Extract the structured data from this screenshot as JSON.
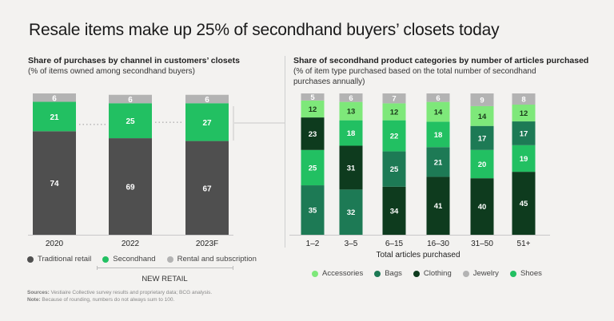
{
  "title": "Resale items make up 25% of secondhand buyers’ closets today",
  "left_panel": {
    "heading": "Share of purchases by channel in customers’ closets",
    "subheading": "(% of items owned among secondhand buyers)",
    "new_retail_label": "NEW RETAIL",
    "legend": [
      {
        "label": "Traditional retail",
        "color": "#4f4f4f"
      },
      {
        "label": "Secondhand",
        "color": "#22c062"
      },
      {
        "label": "Rental and subscription",
        "color": "#b3b3b3"
      }
    ]
  },
  "right_panel": {
    "heading": "Share of secondhand product categories by number of articles purchased",
    "subheading_line1": "(% of item type purchased based on the total number of  secondhand",
    "subheading_line2": "purchases annually)",
    "xlabel": "Total articles purchased",
    "legend": [
      {
        "label": "Accessories",
        "color": "#7ee87a"
      },
      {
        "label": "Bags",
        "color": "#1d7a55"
      },
      {
        "label": "Clothing",
        "color": "#0e3b1e"
      },
      {
        "label": "Jewelry",
        "color": "#b3b3b3"
      },
      {
        "label": "Shoes",
        "color": "#22c062"
      }
    ]
  },
  "footnotes": {
    "sources_label": "Sources:",
    "sources_text": "Vestiaire Collective survey results and proprietary data; BCG analysis.",
    "note_label": "Note:",
    "note_text": "Because of rounding, numbers do not always sum to 100."
  },
  "chart_data": [
    {
      "type": "bar",
      "stacked": true,
      "title": "Share of purchases by channel in customers’ closets",
      "categories": [
        "2020",
        "2022",
        "2023F"
      ],
      "series": [
        {
          "name": "Traditional retail",
          "color": "#4f4f4f",
          "values": [
            74,
            69,
            67
          ]
        },
        {
          "name": "Secondhand",
          "color": "#22c062",
          "values": [
            21,
            25,
            27
          ]
        },
        {
          "name": "Rental and subscription",
          "color": "#b3b3b3",
          "values": [
            6,
            6,
            6
          ]
        }
      ],
      "ylim": [
        0,
        101
      ],
      "legend": "bottom"
    },
    {
      "type": "bar",
      "stacked": true,
      "title": "Share of secondhand product categories by number of articles purchased",
      "xlabel": "Total articles purchased",
      "categories": [
        "1–2",
        "3–5",
        "6–15",
        "16–30",
        "31–50",
        "51+"
      ],
      "stacks": [
        [
          {
            "name": "Bags",
            "value": 35
          },
          {
            "name": "Shoes",
            "value": 25
          },
          {
            "name": "Clothing",
            "value": 23
          },
          {
            "name": "Accessories",
            "value": 12
          },
          {
            "name": "Jewelry",
            "value": 5
          }
        ],
        [
          {
            "name": "Bags",
            "value": 32
          },
          {
            "name": "Clothing",
            "value": 31
          },
          {
            "name": "Shoes",
            "value": 18
          },
          {
            "name": "Accessories",
            "value": 13
          },
          {
            "name": "Jewelry",
            "value": 6
          }
        ],
        [
          {
            "name": "Clothing",
            "value": 34
          },
          {
            "name": "Bags",
            "value": 25
          },
          {
            "name": "Shoes",
            "value": 22
          },
          {
            "name": "Accessories",
            "value": 12
          },
          {
            "name": "Jewelry",
            "value": 7
          }
        ],
        [
          {
            "name": "Clothing",
            "value": 41
          },
          {
            "name": "Bags",
            "value": 21
          },
          {
            "name": "Shoes",
            "value": 18
          },
          {
            "name": "Accessories",
            "value": 14
          },
          {
            "name": "Jewelry",
            "value": 6
          }
        ],
        [
          {
            "name": "Clothing",
            "value": 40
          },
          {
            "name": "Shoes",
            "value": 20
          },
          {
            "name": "Bags",
            "value": 17
          },
          {
            "name": "Accessories",
            "value": 14
          },
          {
            "name": "Jewelry",
            "value": 9
          }
        ],
        [
          {
            "name": "Clothing",
            "value": 45
          },
          {
            "name": "Shoes",
            "value": 19
          },
          {
            "name": "Bags",
            "value": 17
          },
          {
            "name": "Accessories",
            "value": 12
          },
          {
            "name": "Jewelry",
            "value": 8
          }
        ]
      ],
      "colors": {
        "Accessories": "#7ee87a",
        "Bags": "#1d7a55",
        "Clothing": "#0e3b1e",
        "Jewelry": "#b3b3b3",
        "Shoes": "#22c062"
      },
      "label_colors": {
        "Accessories": "#1a3a1a",
        "Bags": "#ffffff",
        "Clothing": "#ffffff",
        "Jewelry": "#ffffff",
        "Shoes": "#ffffff"
      },
      "ylim": [
        0,
        100
      ],
      "legend": "bottom"
    }
  ]
}
